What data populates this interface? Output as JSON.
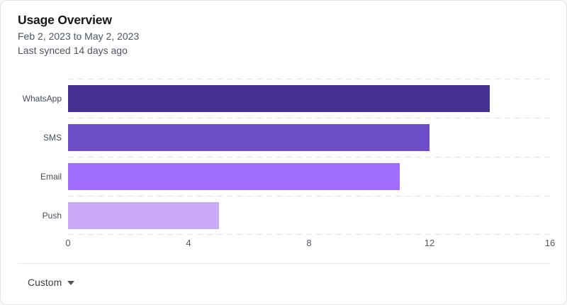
{
  "header": {
    "title": "Usage Overview",
    "date_range": "Feb 2, 2023 to May 2, 2023",
    "last_synced": "Last synced 14 days ago"
  },
  "chart_data": {
    "type": "bar",
    "orientation": "horizontal",
    "title": "Usage Overview",
    "categories": [
      "WhatsApp",
      "SMS",
      "Email",
      "Push"
    ],
    "values": [
      14,
      12,
      11,
      5
    ],
    "xlim": [
      0,
      16
    ],
    "x_ticks": [
      "0",
      "4",
      "8",
      "12",
      "16"
    ],
    "bar_colors": [
      "#453191",
      "#6D4DC8",
      "#A06CFA",
      "#CBAAF8"
    ],
    "grid": "horizontal-dashed",
    "legend": "none",
    "xlabel": "",
    "ylabel": ""
  },
  "footer": {
    "range_selector_label": "Custom"
  }
}
